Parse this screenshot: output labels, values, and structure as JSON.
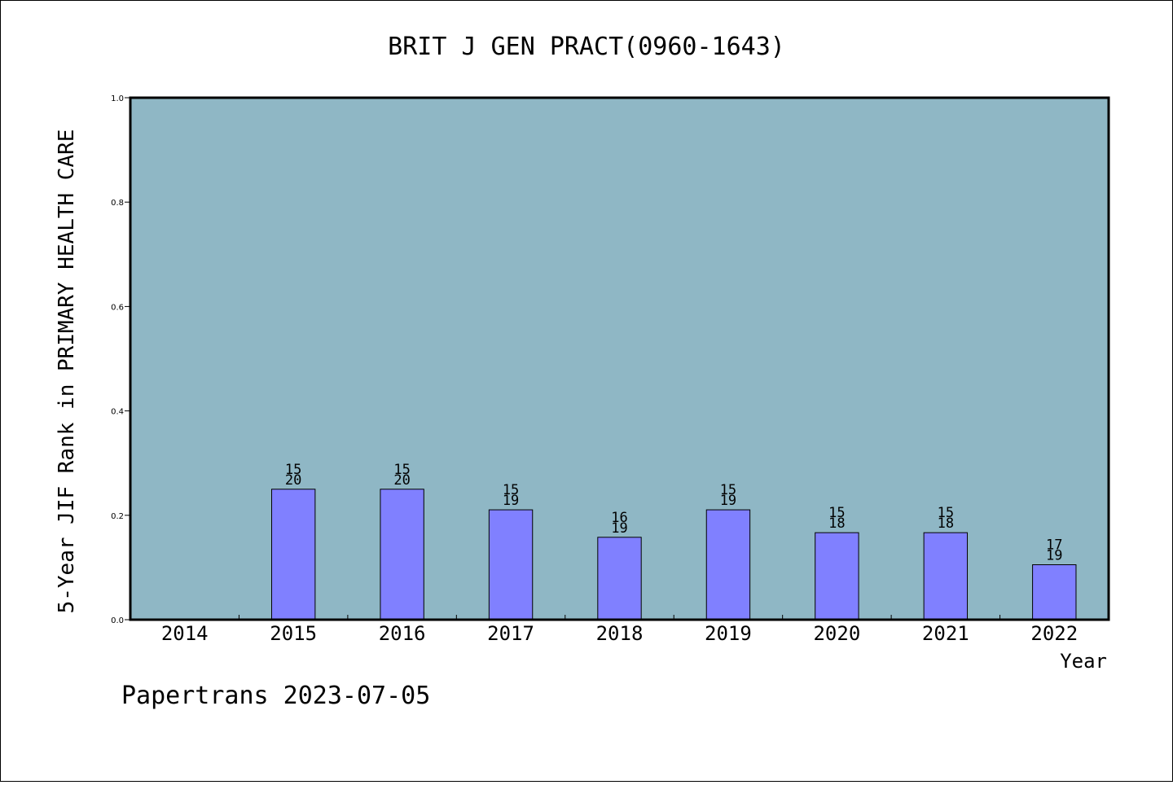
{
  "chart_data": {
    "type": "bar",
    "title": "BRIT J GEN PRACT(0960-1643)",
    "ylabel": "5-Year JIF Rank in PRIMARY HEALTH CARE",
    "xlabel": "Year",
    "ylim": [
      0,
      1.0
    ],
    "yticks": [
      "0.0",
      "0.2",
      "0.4",
      "0.6",
      "0.8",
      "1.0"
    ],
    "grid": false,
    "categories": [
      "2014",
      "2015",
      "2016",
      "2017",
      "2018",
      "2019",
      "2020",
      "2021",
      "2022"
    ],
    "values": [
      null,
      0.25,
      0.25,
      0.2105,
      0.1579,
      0.2105,
      0.1667,
      0.1667,
      0.1053
    ],
    "rank": [
      null,
      "15",
      "15",
      "15",
      "16",
      "15",
      "15",
      "15",
      "17"
    ],
    "total": [
      null,
      "20",
      "20",
      "19",
      "19",
      "19",
      "18",
      "18",
      "19"
    ],
    "colors": {
      "plot_background": "#8fb7c5",
      "bar_fill": "#8080ff",
      "bar_stroke": "#000000"
    }
  },
  "footer": "Papertrans 2023-07-05"
}
